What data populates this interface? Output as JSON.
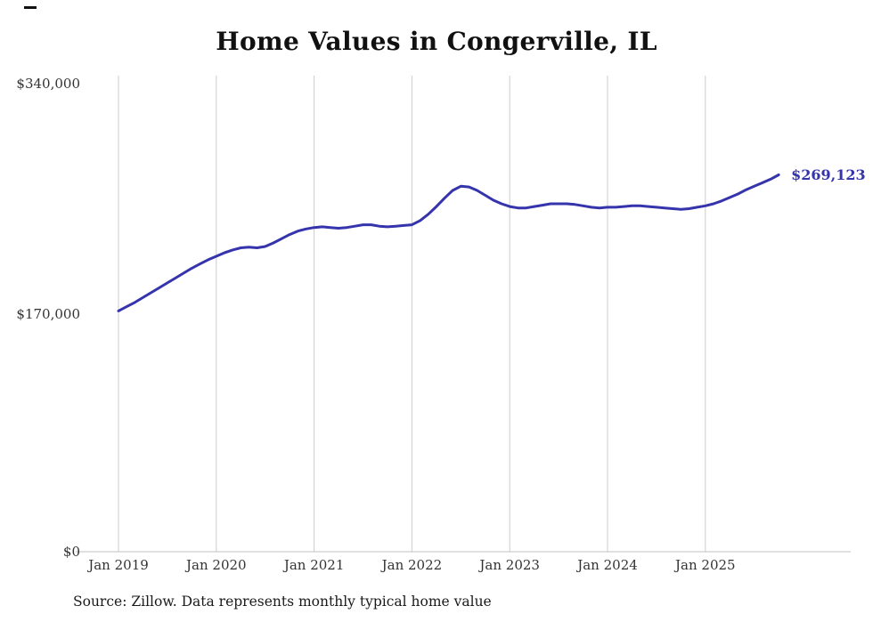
{
  "page": {
    "title": "Home Values in Congerville, IL",
    "source_note": "Source: Zillow. Data represents monthly typical home value",
    "current_value_label": "$269,123"
  },
  "colors": {
    "line": "#3534ac",
    "annotation": "#3534ac",
    "grid": "#cccccc",
    "axis": "#c0c0c0",
    "tick_text": "#333333"
  },
  "chart_data": {
    "type": "line",
    "title": "Home Values in Congerville, IL",
    "series_name": "Monthly typical home value",
    "xlabel": "",
    "ylabel": "",
    "ylim": [
      0,
      340000
    ],
    "grid": "vertical-only",
    "legend": "none",
    "x": [
      "Jan 2019",
      "Feb 2019",
      "Mar 2019",
      "Apr 2019",
      "May 2019",
      "Jun 2019",
      "Jul 2019",
      "Aug 2019",
      "Sep 2019",
      "Oct 2019",
      "Nov 2019",
      "Dec 2019",
      "Jan 2020",
      "Feb 2020",
      "Mar 2020",
      "Apr 2020",
      "May 2020",
      "Jun 2020",
      "Jul 2020",
      "Aug 2020",
      "Sep 2020",
      "Oct 2020",
      "Nov 2020",
      "Dec 2020",
      "Jan 2021",
      "Feb 2021",
      "Mar 2021",
      "Apr 2021",
      "May 2021",
      "Jun 2021",
      "Jul 2021",
      "Aug 2021",
      "Sep 2021",
      "Oct 2021",
      "Nov 2021",
      "Dec 2021",
      "Jan 2022",
      "Feb 2022",
      "Mar 2022",
      "Apr 2022",
      "May 2022",
      "Jun 2022",
      "Jul 2022",
      "Aug 2022",
      "Sep 2022",
      "Oct 2022",
      "Nov 2022",
      "Dec 2022",
      "Jan 2023",
      "Feb 2023",
      "Mar 2023",
      "Apr 2023",
      "May 2023",
      "Jun 2023",
      "Jul 2023",
      "Aug 2023",
      "Sep 2023",
      "Oct 2023",
      "Nov 2023",
      "Dec 2023",
      "Jan 2024",
      "Feb 2024",
      "Mar 2024",
      "Apr 2024",
      "May 2024",
      "Jun 2024",
      "Jul 2024",
      "Aug 2024",
      "Sep 2024",
      "Oct 2024",
      "Nov 2024",
      "Dec 2024",
      "Jan 2025",
      "Feb 2025",
      "Mar 2025",
      "Apr 2025",
      "May 2025",
      "Jun 2025",
      "Jul 2025",
      "Aug 2025",
      "Sep 2025",
      "Oct 2025"
    ],
    "values": [
      172000,
      175000,
      178000,
      181500,
      185000,
      188500,
      192000,
      195500,
      199000,
      202500,
      205500,
      208500,
      211000,
      213500,
      215500,
      217000,
      217500,
      217000,
      218000,
      220500,
      223500,
      226500,
      229000,
      230500,
      231500,
      232000,
      231500,
      231000,
      231500,
      232500,
      233500,
      233500,
      232500,
      232000,
      232500,
      233000,
      233500,
      236500,
      241000,
      246500,
      252500,
      258000,
      261000,
      260500,
      258000,
      254500,
      251000,
      248500,
      246500,
      245500,
      245500,
      246500,
      247500,
      248500,
      248500,
      248500,
      248000,
      247000,
      246000,
      245500,
      246000,
      246000,
      246500,
      247000,
      247000,
      246500,
      246000,
      245500,
      245000,
      244500,
      245000,
      246000,
      247000,
      248500,
      250500,
      253000,
      255500,
      258500,
      261000,
      263500,
      266000,
      269123
    ],
    "end_annotation": "$269,123",
    "y_ticks": [
      {
        "value": 0,
        "label": "$0"
      },
      {
        "value": 170000,
        "label": "$170,000"
      },
      {
        "value": 340000,
        "label": "$340,000"
      }
    ],
    "x_ticks": [
      {
        "month_index": 0,
        "label": "Jan 2019"
      },
      {
        "month_index": 12,
        "label": "Jan 2020"
      },
      {
        "month_index": 24,
        "label": "Jan 2021"
      },
      {
        "month_index": 36,
        "label": "Jan 2022"
      },
      {
        "month_index": 48,
        "label": "Jan 2023"
      },
      {
        "month_index": 60,
        "label": "Jan 2024"
      },
      {
        "month_index": 72,
        "label": "Jan 2025"
      }
    ]
  }
}
